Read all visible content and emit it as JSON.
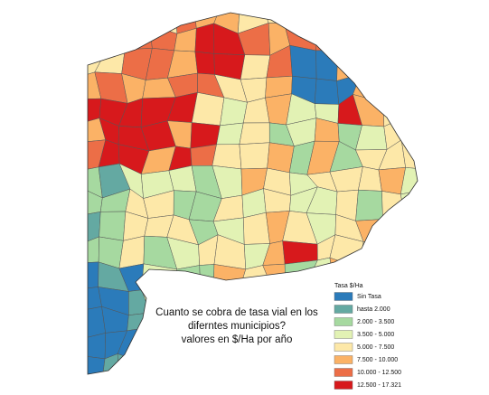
{
  "map": {
    "title_lines": [
      "Cuanto se cobra de tasa vial en los",
      "diferntes municipios?",
      "valores en $/Ha por año"
    ],
    "legend": {
      "title": "Tasa $/Ha",
      "items": [
        {
          "label": "Sin Tasa",
          "color": "#2b7bba"
        },
        {
          "label": "hasta 2.000",
          "color": "#64a9a2"
        },
        {
          "label": "2.000 - 3.500",
          "color": "#a6d9a0"
        },
        {
          "label": "3.500 - 5.000",
          "color": "#e2f2b4"
        },
        {
          "label": "5.000 - 7.500",
          "color": "#fde8a8"
        },
        {
          "label": "7.500 - 10.000",
          "color": "#fbb266"
        },
        {
          "label": "10.000 - 12.500",
          "color": "#ec6e47"
        },
        {
          "label": "12.500 - 17.321",
          "color": "#d7191c"
        }
      ]
    }
  }
}
